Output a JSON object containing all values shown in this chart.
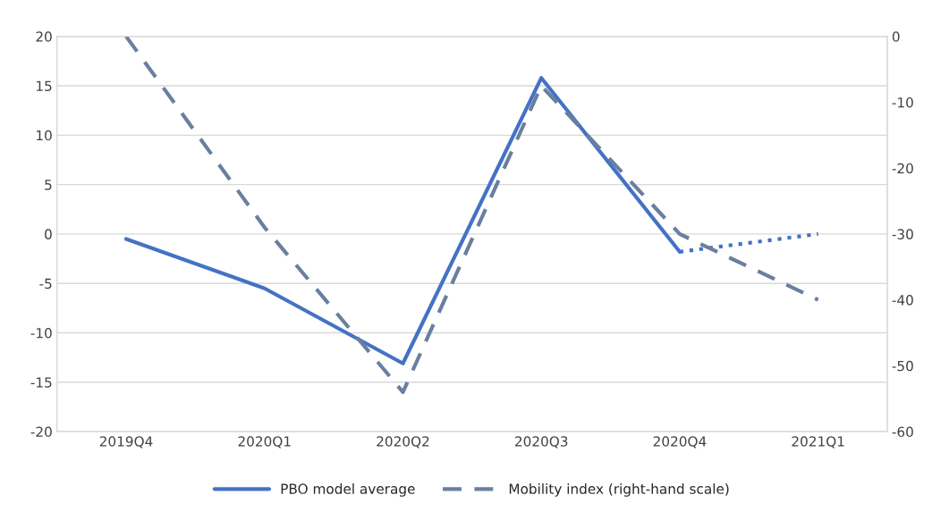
{
  "chart_data": {
    "type": "line",
    "categories": [
      "2019Q4",
      "2020Q1",
      "2020Q2",
      "2020Q3",
      "2020Q4",
      "2021Q1"
    ],
    "series": [
      {
        "name": "PBO model average",
        "color": "#4472c4",
        "line_style": "solid",
        "values": [
          -0.5,
          -5.5,
          -13.1,
          15.8,
          -1.8,
          null
        ]
      },
      {
        "color": "#4472c4",
        "line_style": "dotted",
        "values": [
          null,
          null,
          null,
          null,
          -1.8,
          0
        ]
      },
      {
        "name": "Mobility index (right-hand scale)",
        "color": "#6a7fa0",
        "line_style": "dashed",
        "axis": "y2",
        "values": [
          0,
          -29,
          -54,
          -7.5,
          -30,
          -40
        ]
      }
    ],
    "ylim": [
      -20,
      20
    ],
    "yticks": [
      -20,
      -15,
      -10,
      -5,
      0,
      5,
      10,
      15,
      20
    ],
    "y2lim": [
      -60,
      0
    ],
    "y2ticks": [
      -60,
      -50,
      -40,
      -30,
      -20,
      -10,
      0
    ],
    "grid": "y",
    "legend": "bottom",
    "marker": "none"
  }
}
